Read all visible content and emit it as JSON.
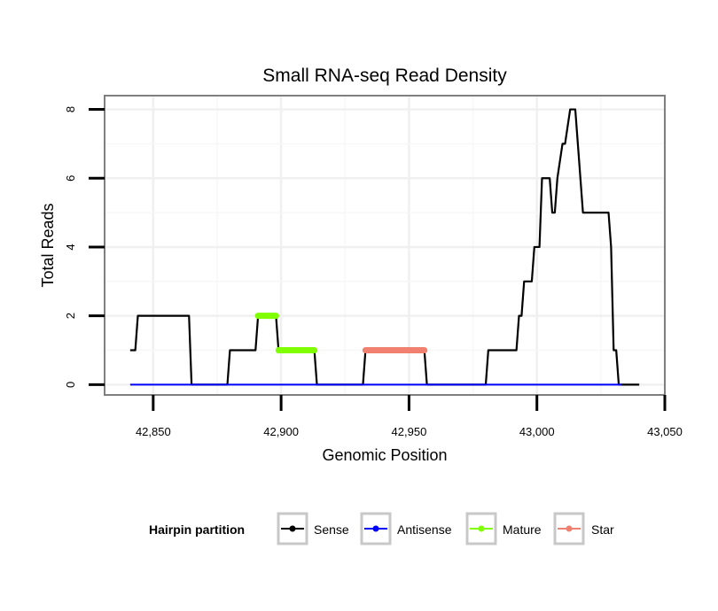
{
  "chart_data": {
    "type": "line",
    "title": "Small RNA-seq Read Density",
    "xlabel": "Genomic Position",
    "ylabel": "Total Reads",
    "xlim": [
      42831,
      43050
    ],
    "ylim": [
      -0.3,
      8.4
    ],
    "x_ticks": [
      42850,
      42900,
      42950,
      43000,
      43050
    ],
    "x_tick_labels": [
      "42,850",
      "42,900",
      "42,950",
      "43,000",
      "43,050"
    ],
    "y_ticks": [
      0,
      2,
      4,
      6,
      8
    ],
    "y_tick_labels": [
      "0",
      "2",
      "4",
      "6",
      "8"
    ],
    "grid": true,
    "legend": {
      "title": "Hairpin partition",
      "position": "bottom"
    },
    "series": [
      {
        "name": "Sense",
        "color": "#000000",
        "x": [
          42841,
          42843,
          42844,
          42864,
          42865,
          42879,
          42880,
          42890,
          42891,
          42898,
          42899,
          42913,
          42914,
          42932,
          42933,
          42956,
          42957,
          42980,
          42981,
          42992,
          42993,
          42994,
          42995,
          42998,
          42999,
          43001,
          43002,
          43005,
          43006,
          43007,
          43008,
          43010,
          43011,
          43013,
          43014,
          43015,
          43016,
          43018,
          43019,
          43028,
          43029,
          43030,
          43031,
          43032,
          43033,
          43040
        ],
        "y": [
          1,
          1,
          2,
          2,
          0,
          0,
          1,
          1,
          2,
          2,
          1,
          1,
          0,
          0,
          1,
          1,
          0,
          0,
          1,
          1,
          2,
          2,
          3,
          3,
          4,
          4,
          6,
          6,
          5,
          5,
          6,
          7,
          7,
          8,
          8,
          8,
          7,
          5,
          5,
          5,
          4,
          1,
          1,
          0,
          0,
          0
        ]
      },
      {
        "name": "Antisense",
        "color": "#0000FF",
        "x": [
          42841,
          43033
        ],
        "y": [
          0,
          0
        ]
      },
      {
        "name": "Mature",
        "color": "#7FFF00",
        "segments": [
          {
            "x": [
              42891,
              42898
            ],
            "y": 2
          },
          {
            "x": [
              42899,
              42913
            ],
            "y": 1
          }
        ]
      },
      {
        "name": "Star",
        "color": "#F08070",
        "segments": [
          {
            "x": [
              42933,
              42956
            ],
            "y": 1
          }
        ]
      }
    ]
  }
}
